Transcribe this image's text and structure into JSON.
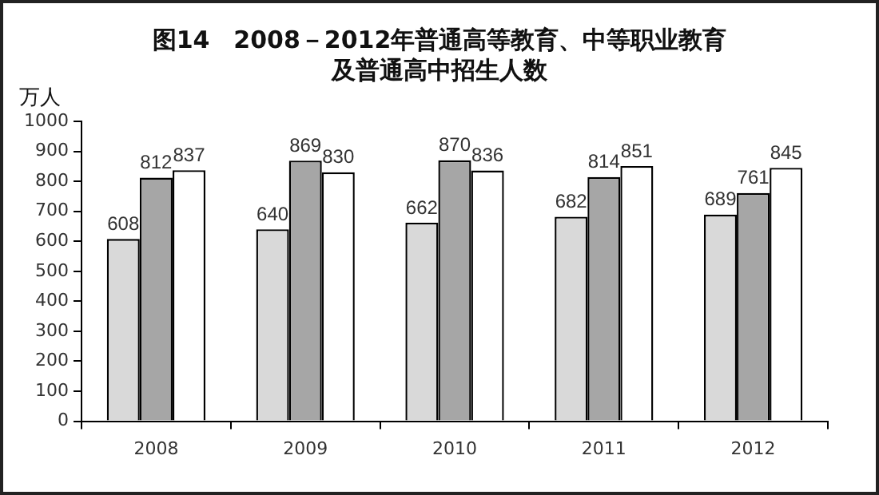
{
  "chart_data": {
    "type": "bar",
    "title": "图14　2008－2012年普通高等教育、中等职业教育及普通高中招生人数",
    "ylabel": "万人",
    "categories": [
      "2008",
      "2009",
      "2010",
      "2011",
      "2012"
    ],
    "series": [
      {
        "color": "#d9d9d9",
        "values": [
          608,
          640,
          662,
          682,
          689
        ]
      },
      {
        "color": "#a6a6a6",
        "values": [
          812,
          869,
          870,
          814,
          761
        ]
      },
      {
        "color": "#ffffff",
        "values": [
          837,
          830,
          836,
          851,
          845
        ]
      }
    ],
    "ylim": [
      0,
      1000
    ],
    "yticks": [
      0,
      100,
      200,
      300,
      400,
      500,
      600,
      700,
      800,
      900,
      1000
    ],
    "grid": false,
    "legend": false,
    "data_labels": true
  }
}
